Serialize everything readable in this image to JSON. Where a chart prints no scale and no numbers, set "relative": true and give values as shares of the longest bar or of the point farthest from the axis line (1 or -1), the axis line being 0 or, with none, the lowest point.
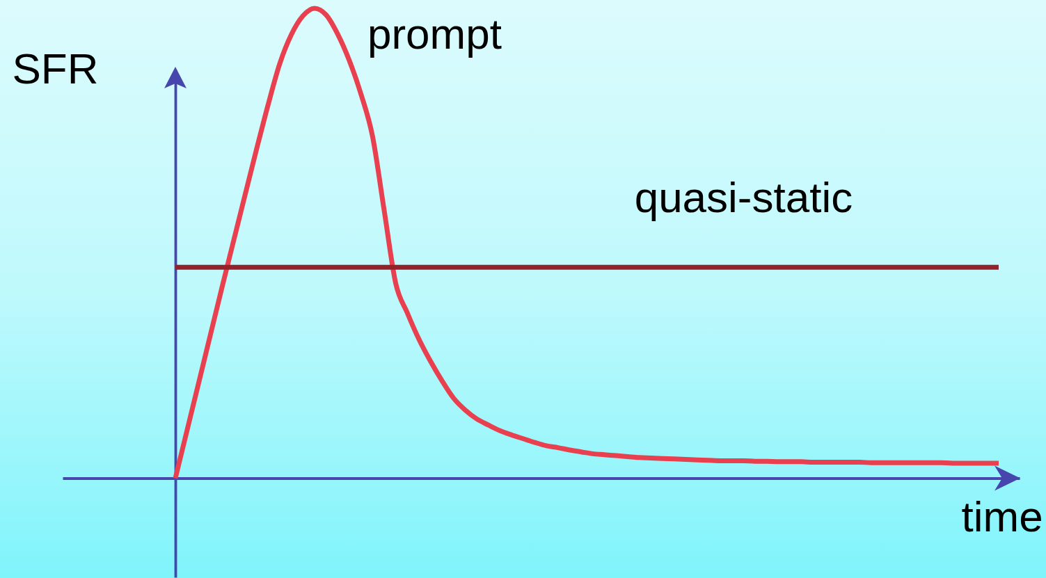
{
  "chart_data": {
    "type": "line",
    "relative": true,
    "xlabel": "time",
    "ylabel": "SFR",
    "categories": [
      null,
      null,
      null,
      null,
      null,
      null,
      null,
      null,
      null,
      null,
      null,
      null,
      null,
      null,
      null,
      null,
      null,
      null,
      null,
      null,
      null,
      null,
      null,
      null,
      null,
      null,
      null,
      null,
      null,
      null,
      null,
      null,
      null,
      null,
      null,
      null,
      null,
      null,
      null,
      null,
      null,
      null,
      null,
      null,
      null,
      null,
      null,
      null,
      null,
      null,
      null,
      null,
      null,
      null,
      null,
      null,
      null,
      null,
      null,
      null,
      null,
      null,
      null,
      null,
      null,
      null,
      null,
      null,
      null,
      null,
      null,
      null
    ],
    "series": [
      {
        "name": "prompt",
        "color": "#e8404f",
        "values": [
          0,
          0.101,
          0.202,
          0.303,
          0.404,
          0.503,
          0.602,
          0.7,
          0.795,
          0.882,
          0.944,
          0.984,
          1,
          0.986,
          0.945,
          0.889,
          0.818,
          0.728,
          0.571,
          0.415,
          0.352,
          0.296,
          0.249,
          0.207,
          0.17,
          0.145,
          0.126,
          0.113,
          0.101,
          0.092,
          0.084,
          0.076,
          0.069,
          0.065,
          0.06,
          0.056,
          0.052,
          0.05,
          0.048,
          0.046,
          0.044,
          0.043,
          0.042,
          0.041,
          0.04,
          0.039,
          0.038,
          0.037,
          0.037,
          0.037,
          0.036,
          0.036,
          0.035,
          0.035,
          0.035,
          0.034,
          0.034,
          0.034,
          0.034,
          0.034,
          0.033,
          0.033,
          0.033,
          0.033,
          0.033,
          0.033,
          0.033,
          0.032,
          0.032,
          0.032,
          0.032,
          0.032
        ]
      },
      {
        "name": "quasi-static",
        "color": "#93222b",
        "values": [
          0.449,
          0.449,
          0.449,
          0.449,
          0.449,
          0.449,
          0.449,
          0.449,
          0.449,
          0.449,
          0.449,
          0.449,
          0.449,
          0.449,
          0.449,
          0.449,
          0.449,
          0.449,
          0.449,
          0.449,
          0.449,
          0.449,
          0.449,
          0.449,
          0.449,
          0.449,
          0.449,
          0.449,
          0.449,
          0.449,
          0.449,
          0.449,
          0.449,
          0.449,
          0.449,
          0.449,
          0.449,
          0.449,
          0.449,
          0.449,
          0.449,
          0.449,
          0.449,
          0.449,
          0.449,
          0.449,
          0.449,
          0.449,
          0.449,
          0.449,
          0.449,
          0.449,
          0.449,
          0.449,
          0.449,
          0.449,
          0.449,
          0.449,
          0.449,
          0.449,
          0.449,
          0.449,
          0.449,
          0.449,
          0.449,
          0.449,
          0.449,
          0.449,
          0.449,
          0.449,
          0.449,
          0.449
        ]
      }
    ]
  }
}
